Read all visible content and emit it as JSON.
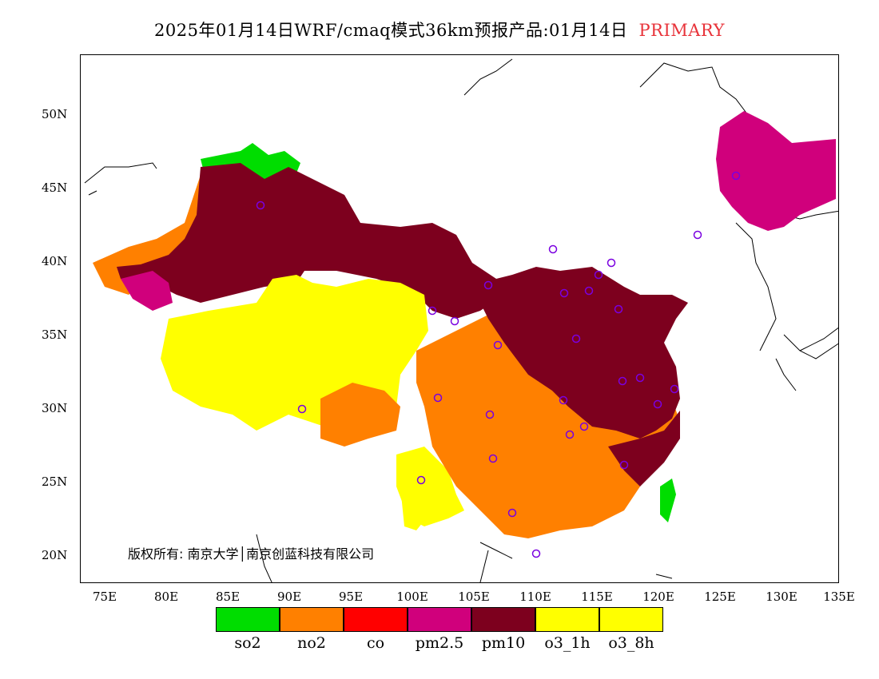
{
  "header": {
    "title": "2025年01月14日WRF/cmaq模式36km预报产品:01月14日",
    "tag": "PRIMARY"
  },
  "map": {
    "lat_labels": [
      "50N",
      "45N",
      "40N",
      "35N",
      "30N",
      "25N",
      "20N"
    ],
    "lon_labels": [
      "75E",
      "80E",
      "85E",
      "90E",
      "95E",
      "100E",
      "105E",
      "110E",
      "115E",
      "120E",
      "125E",
      "130E",
      "135E"
    ],
    "copyright": "版权所有: 南京大学│南京创蓝科技有限公司"
  },
  "legend": {
    "items": [
      {
        "label": "so2",
        "color": "#00dd00"
      },
      {
        "label": "no2",
        "color": "#ff8000"
      },
      {
        "label": "co",
        "color": "#ff0000"
      },
      {
        "label": "pm2.5",
        "color": "#d0007c"
      },
      {
        "label": "pm10",
        "color": "#7d001e"
      },
      {
        "label": "o3_1h",
        "color": "#ffff00"
      },
      {
        "label": "o3_8h",
        "color": "#ffff00"
      }
    ]
  }
}
